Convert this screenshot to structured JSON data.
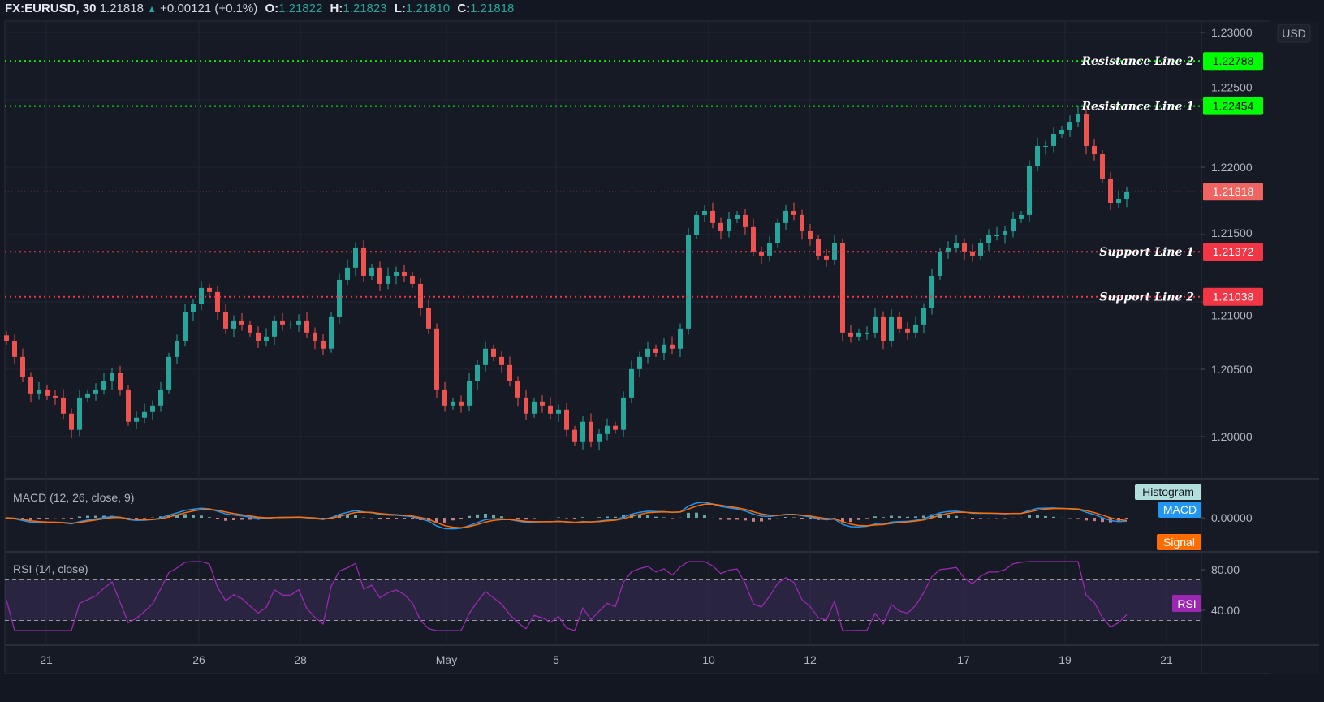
{
  "header": {
    "symbol": "FX:EURUSD, 30",
    "last": "1.21818",
    "change": "+0.00121 (+0.1%)",
    "open_label": "O:",
    "open": "1.21822",
    "high_label": "H:",
    "high": "1.21823",
    "low_label": "L:",
    "low": "1.21810",
    "close_label": "C:",
    "close": "1.21818"
  },
  "colors": {
    "up": "#26a69a",
    "down": "#ef5350",
    "resistance": "#00ff00",
    "support": "#f23645",
    "macd": "#2196f3",
    "signal": "#ff6d00",
    "rsi": "#9c27b0",
    "background": "#161a25"
  },
  "chart_data": {
    "type": "candlestick",
    "currency": "USD",
    "y_ticks": [
      "1.23000",
      "1.22500",
      "1.22000",
      "1.21500",
      "1.21000",
      "1.20500",
      "1.20000"
    ],
    "x_ticks": [
      "21",
      "26",
      "28",
      "May",
      "5",
      "10",
      "12",
      "17",
      "19",
      "21"
    ],
    "grid": true,
    "closes": [
      1.20711,
      1.20591,
      1.20441,
      1.2032,
      1.2035,
      1.20302,
      1.2029,
      1.2017,
      1.2005,
      1.2029,
      1.2032,
      1.2035,
      1.20411,
      1.20471,
      1.2035,
      1.2011,
      1.2014,
      1.20182,
      1.2023,
      1.2035,
      1.20591,
      1.20711,
      1.20922,
      1.20983,
      1.21103,
      1.21073,
      1.20922,
      1.20802,
      1.20862,
      1.20832,
      1.20772,
      1.20711,
      1.20742,
      1.20862,
      1.20832,
      1.20832,
      1.20862,
      1.20772,
      1.20711,
      1.20652,
      1.20892,
      1.21163,
      1.21254,
      1.21404,
      1.21193,
      1.21254,
      1.21133,
      1.21193,
      1.21223,
      1.21193,
      1.21133,
      1.20953,
      1.20802,
      1.2035,
      1.2023,
      1.2026,
      1.2023,
      1.20411,
      1.20531,
      1.20652,
      1.20591,
      1.20531,
      1.20411,
      1.2029,
      1.2017,
      1.2026,
      1.2023,
      1.2017,
      1.202,
      1.2005,
      1.19959,
      1.2011,
      1.19959,
      1.20019,
      1.2008,
      1.2005,
      1.2029,
      1.20501,
      1.20591,
      1.20652,
      1.20621,
      1.20682,
      1.20652,
      1.20802,
      1.21494,
      1.21645,
      1.21675,
      1.21585,
      1.21524,
      1.21615,
      1.21645,
      1.21555,
      1.21374,
      1.21344,
      1.21434,
      1.21585,
      1.21675,
      1.21645,
      1.21524,
      1.21464,
      1.21344,
      1.21314,
      1.21434,
      1.20772,
      1.20742,
      1.20772,
      1.20772,
      1.20892,
      1.20711,
      1.20892,
      1.20802,
      1.20772,
      1.20832,
      1.20953,
      1.21193,
      1.21374,
      1.21404,
      1.21434,
      1.21374,
      1.21344,
      1.21434,
      1.21494,
      1.21494,
      1.21524,
      1.21615,
      1.21645,
      1.22006,
      1.22157,
      1.22157,
      1.22247,
      1.22277,
      1.22337,
      1.22397,
      1.22157,
      1.22096,
      1.21916,
      1.21735,
      1.21765,
      1.21818
    ],
    "current_price": "1.21818",
    "levels": [
      {
        "name": "Resistance Line 2",
        "value": "1.22788",
        "kind": "resistance"
      },
      {
        "name": "Resistance Line 1",
        "value": "1.22454",
        "kind": "resistance"
      },
      {
        "name": "Support Line 1",
        "value": "1.21372",
        "kind": "support"
      },
      {
        "name": "Support Line 2",
        "value": "1.21038",
        "kind": "support"
      }
    ],
    "macd": {
      "title": "MACD (12, 26, close, 9)",
      "zero_tick": "0.00000",
      "legend": [
        "Histogram",
        "MACD",
        "Signal"
      ]
    },
    "rsi": {
      "title": "RSI (14, close)",
      "ticks": [
        "80.00",
        "40.00"
      ],
      "upper_band": 70,
      "lower_band": 30,
      "legend": "RSI"
    }
  }
}
